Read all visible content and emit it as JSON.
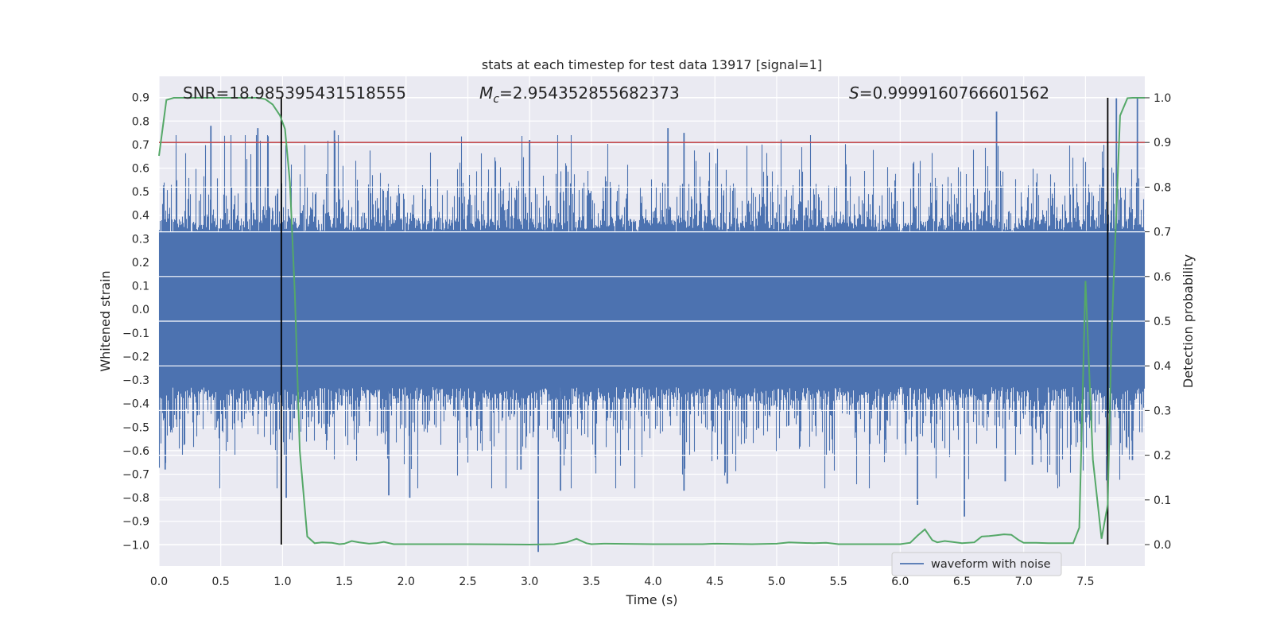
{
  "chart_data": {
    "type": "line",
    "title": "stats at each timestep for test data 13917 [signal=1]",
    "xlabel": "Time (s)",
    "ylabel_left": "Whitened strain",
    "ylabel_right": "Detection probability",
    "xlim": [
      0.0,
      7.98
    ],
    "ylim_left": [
      -1.09,
      0.99
    ],
    "ylim_right": [
      -0.048,
      1.048
    ],
    "xticks": [
      "0.0",
      "0.5",
      "1.0",
      "1.5",
      "2.0",
      "2.5",
      "3.0",
      "3.5",
      "4.0",
      "4.5",
      "5.0",
      "5.5",
      "6.0",
      "6.5",
      "7.0",
      "7.5"
    ],
    "yticks_left": [
      "0.9",
      "0.8",
      "0.7",
      "0.6",
      "0.5",
      "0.4",
      "0.3",
      "0.2",
      "0.1",
      "0.0",
      "−0.1",
      "−0.2",
      "−0.3",
      "−0.4",
      "−0.5",
      "−0.6",
      "−0.7",
      "−0.8",
      "−0.9",
      "−1.0"
    ],
    "yticks_right": [
      "1.0",
      "0.9",
      "0.8",
      "0.7",
      "0.6",
      "0.5",
      "0.4",
      "0.3",
      "0.2",
      "0.1",
      "0.0"
    ],
    "grid": true,
    "legend": {
      "location": "lower-right",
      "entries": [
        "waveform with noise"
      ]
    },
    "annotations": {
      "snr": "SNR=18.985395431518555",
      "mc_symbol": "M",
      "mc_sub": "c",
      "mc_value": "=2.954352855682373",
      "s_symbol": "S",
      "s_value": "=0.9999160766601562"
    },
    "threshold": {
      "axis": "right",
      "value": 0.9,
      "color": "#c44e52"
    },
    "vertical_markers": [
      0.99,
      7.68
    ],
    "strain_envelope": {
      "color": "#4c72b0",
      "base_amplitude": 0.33,
      "seed": 13917,
      "peaks": [
        {
          "t": 0.42,
          "v": 0.78
        },
        {
          "t": 0.8,
          "v": 0.77
        },
        {
          "t": 1.42,
          "v": 0.76
        },
        {
          "t": 3.0,
          "v": 0.72
        },
        {
          "t": 4.12,
          "v": 0.77
        },
        {
          "t": 4.25,
          "v": 0.75
        },
        {
          "t": 6.78,
          "v": 0.84
        },
        {
          "t": 7.92,
          "v": 0.9
        },
        {
          "t": 7.75,
          "v": 0.9
        },
        {
          "t": 3.07,
          "v": -1.03
        },
        {
          "t": 6.52,
          "v": -0.88
        },
        {
          "t": 6.14,
          "v": -0.83
        },
        {
          "t": 2.03,
          "v": -0.8
        },
        {
          "t": 1.03,
          "v": -0.8
        },
        {
          "t": 1.86,
          "v": -0.79
        },
        {
          "t": 3.25,
          "v": -0.77
        },
        {
          "t": 4.25,
          "v": -0.77
        },
        {
          "t": 4.6,
          "v": -0.74
        },
        {
          "t": 6.85,
          "v": -0.73
        },
        {
          "t": 7.07,
          "v": -0.66
        },
        {
          "t": 2.93,
          "v": -0.68
        },
        {
          "t": 0.05,
          "v": -0.68
        },
        {
          "t": 7.88,
          "v": -0.64
        }
      ]
    },
    "series": [
      {
        "name": "detection probability",
        "axis": "right",
        "color": "#55a868",
        "x": [
          0.0,
          0.06,
          0.12,
          0.2,
          0.3,
          0.5,
          0.7,
          0.8,
          0.86,
          0.92,
          0.98,
          1.02,
          1.06,
          1.1,
          1.14,
          1.2,
          1.26,
          1.32,
          1.4,
          1.46,
          1.5,
          1.56,
          1.62,
          1.7,
          1.76,
          1.82,
          1.9,
          1.96,
          2.0,
          2.5,
          3.0,
          3.2,
          3.3,
          3.38,
          3.46,
          3.5,
          3.6,
          4.0,
          4.4,
          4.5,
          4.8,
          5.0,
          5.1,
          5.3,
          5.4,
          5.5,
          5.6,
          5.8,
          6.0,
          6.08,
          6.14,
          6.2,
          6.26,
          6.3,
          6.36,
          6.42,
          6.5,
          6.6,
          6.66,
          6.72,
          6.78,
          6.84,
          6.9,
          6.96,
          7.0,
          7.1,
          7.2,
          7.3,
          7.35,
          7.4,
          7.45,
          7.5,
          7.56,
          7.63,
          7.68,
          7.71,
          7.78,
          7.84,
          7.88,
          7.98
        ],
        "y": [
          0.87,
          0.995,
          1.0,
          1.0,
          1.0,
          1.0,
          1.0,
          1.0,
          0.997,
          0.985,
          0.96,
          0.93,
          0.81,
          0.56,
          0.21,
          0.018,
          0.003,
          0.005,
          0.004,
          0.001,
          0.002,
          0.008,
          0.005,
          0.002,
          0.003,
          0.006,
          0.001,
          0.001,
          0.001,
          0.001,
          0.0,
          0.001,
          0.005,
          0.013,
          0.003,
          0.001,
          0.002,
          0.001,
          0.001,
          0.002,
          0.001,
          0.002,
          0.005,
          0.003,
          0.004,
          0.001,
          0.001,
          0.001,
          0.001,
          0.004,
          0.02,
          0.034,
          0.01,
          0.005,
          0.008,
          0.006,
          0.003,
          0.005,
          0.018,
          0.019,
          0.021,
          0.023,
          0.022,
          0.01,
          0.004,
          0.004,
          0.003,
          0.003,
          0.003,
          0.003,
          0.038,
          0.59,
          0.19,
          0.013,
          0.09,
          0.46,
          0.96,
          0.999,
          1.0,
          1.0
        ]
      }
    ]
  }
}
